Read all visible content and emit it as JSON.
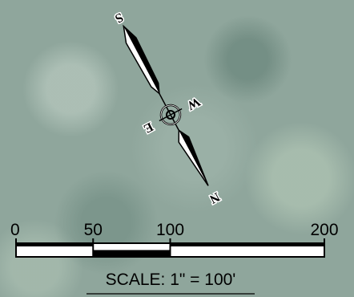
{
  "compass": {
    "north": "N",
    "south": "S",
    "east": "E",
    "west": "W"
  },
  "scale_bar": {
    "ticks": [
      0,
      50,
      100,
      200
    ],
    "caption": "SCALE: 1\" = 100'"
  }
}
